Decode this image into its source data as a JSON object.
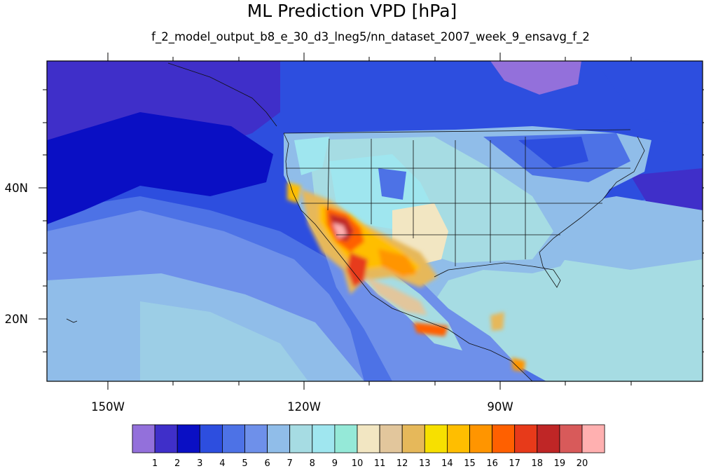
{
  "title": "ML Prediction VPD [hPa]",
  "subtitle": "f_2_model_output_b8_e_30_d3_lneg5/nn_dataset_2007_week_9_ensavg_f_2",
  "lon_labels": [
    "150W",
    "120W",
    "90W"
  ],
  "lat_labels": [
    "40N",
    "20N"
  ],
  "colorbar": {
    "labels": [
      "1",
      "2",
      "3",
      "4",
      "5",
      "6",
      "7",
      "8",
      "9",
      "10",
      "11",
      "12",
      "13",
      "14",
      "15",
      "16",
      "17",
      "18",
      "19",
      "20"
    ],
    "colors": [
      "#9370db",
      "#3f2fc9",
      "#0a0fc4",
      "#2d4edf",
      "#4d72e6",
      "#6e90ea",
      "#90bde9",
      "#a6dce3",
      "#9fe6ef",
      "#95e9d8",
      "#f2e6c2",
      "#e2c69c",
      "#e6b85a",
      "#f7e000",
      "#ffbe00",
      "#ff9500",
      "#ff6000",
      "#e73a1a",
      "#bf2626",
      "#d85a5a",
      "#ffb0b0"
    ]
  }
}
